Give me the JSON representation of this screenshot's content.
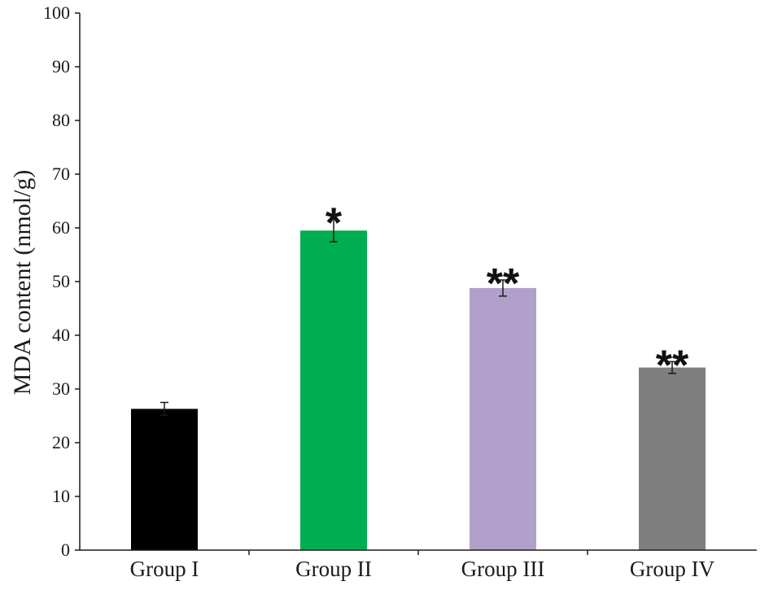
{
  "chart_data": {
    "type": "bar",
    "title": "",
    "xlabel": "",
    "ylabel": "MDA content (nmol/g)",
    "ylim": [
      0,
      100
    ],
    "yticks": [
      0,
      10,
      20,
      30,
      40,
      50,
      60,
      70,
      80,
      90,
      100
    ],
    "grid": false,
    "legend": "none",
    "categories": [
      "Group I",
      "Group II",
      "Group III",
      "Group IV"
    ],
    "values": [
      26.3,
      59.5,
      48.8,
      34.0
    ],
    "errors": [
      1.2,
      2.1,
      1.5,
      1.1
    ],
    "significance": [
      "",
      "*",
      "**",
      "**"
    ],
    "colors": [
      "#000000",
      "#00ad50",
      "#b1a0ca",
      "#7f7f7f"
    ]
  }
}
